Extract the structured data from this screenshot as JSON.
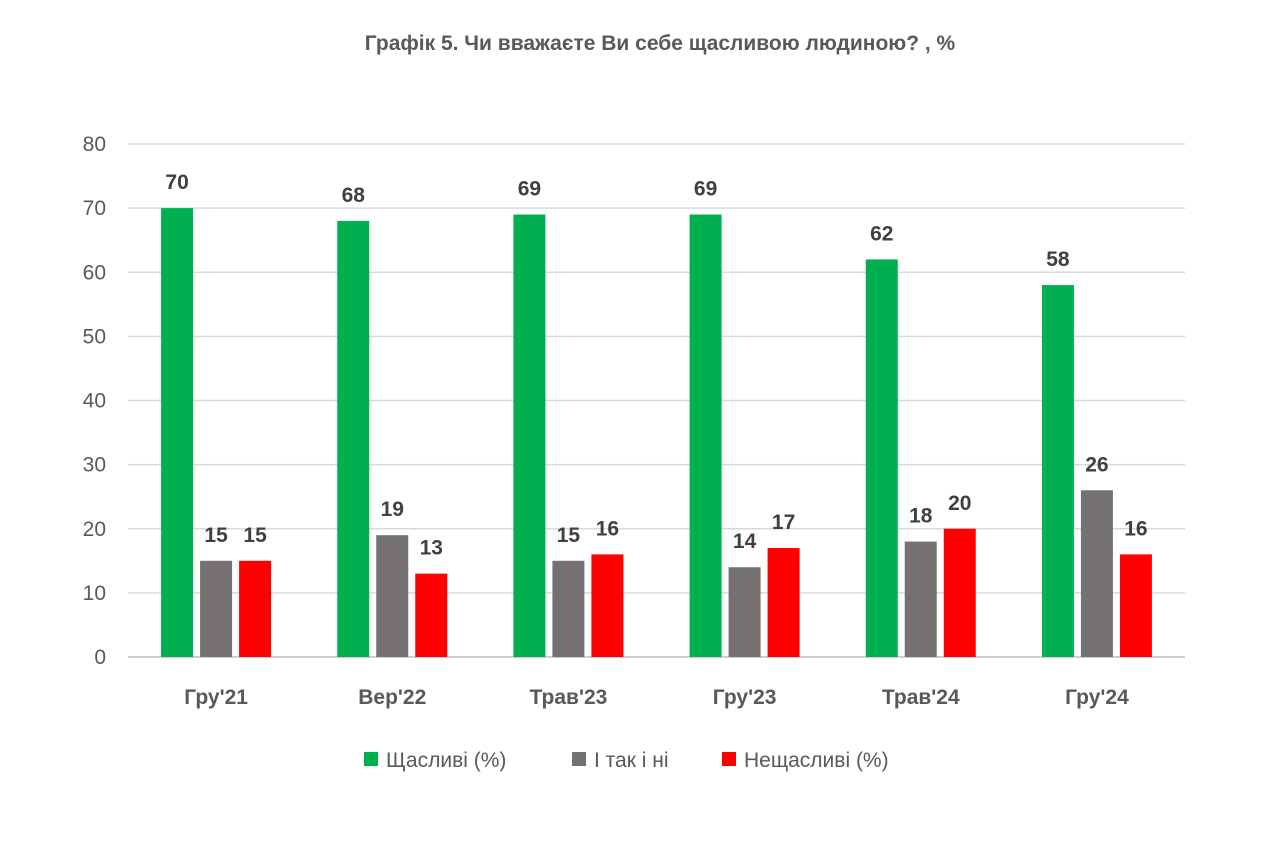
{
  "chart_data": {
    "type": "bar",
    "title": "Графік 5. Чи вважаєте Ви себе щасливою людиною? , %",
    "categories": [
      "Гру'21",
      "Вер'22",
      "Трав'23",
      "Гру'23",
      "Трав'24",
      "Гру'24"
    ],
    "series": [
      {
        "name": "Щасливі (%)",
        "color": "#00B050",
        "values": [
          70,
          68,
          69,
          69,
          62,
          58
        ]
      },
      {
        "name": "І так і ні",
        "color": "#767171",
        "values": [
          15,
          19,
          15,
          14,
          18,
          26
        ]
      },
      {
        "name": "Нещасливі (%)",
        "color": "#FF0000",
        "values": [
          15,
          13,
          16,
          17,
          20,
          16
        ]
      }
    ],
    "ylim": [
      0,
      80
    ],
    "yticks": [
      "0",
      "10",
      "20",
      "30",
      "40",
      "50",
      "60",
      "70",
      "80"
    ],
    "grid": true,
    "legend_position": "bottom",
    "xlabel": "",
    "ylabel": ""
  }
}
